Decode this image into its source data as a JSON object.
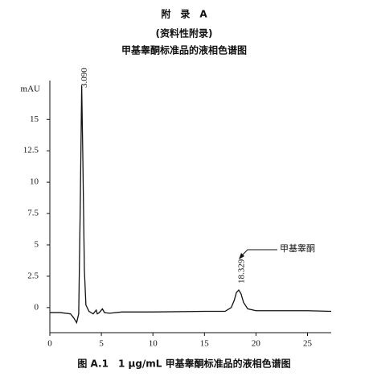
{
  "header": {
    "appendix": "附　录　A",
    "note": "(资料性附录)",
    "title": "甲基睾酮标准品的液相色谱图"
  },
  "chart_data": {
    "type": "line",
    "ylabel": "mAU",
    "caption": "图 A.1　1 μg/mL 甲基睾酮标准品的液相色谱图",
    "x": [
      0,
      1,
      2,
      2.3,
      2.6,
      2.8,
      2.95,
      3.09,
      3.2,
      3.35,
      3.5,
      3.8,
      4.2,
      4.5,
      4.6,
      4.8,
      5.1,
      5.3,
      5.8,
      7,
      10,
      15,
      17,
      17.6,
      17.9,
      18.1,
      18.329,
      18.55,
      18.8,
      19.2,
      20,
      25,
      27.3
    ],
    "series": [
      {
        "name": "chromatogram",
        "color": "#111111",
        "values": [
          -0.4,
          -0.4,
          -0.5,
          -0.8,
          -1.2,
          -0.5,
          8,
          17.7,
          12,
          3,
          0.2,
          -0.3,
          -0.5,
          -0.2,
          -0.5,
          -0.4,
          -0.1,
          -0.4,
          -0.45,
          -0.35,
          -0.35,
          -0.3,
          -0.3,
          0,
          0.6,
          1.2,
          1.4,
          1.1,
          0.4,
          -0.1,
          -0.25,
          -0.25,
          -0.3
        ]
      }
    ],
    "peak_labels": [
      {
        "value": 3.09,
        "label": "3.090"
      },
      {
        "value": 18.329,
        "label": "18.329"
      }
    ],
    "compound_label": "甲基睾酮",
    "xlim": [
      0,
      27.3
    ],
    "ylim": [
      -2,
      18.1
    ],
    "xticks": [
      0,
      5,
      10,
      15,
      20,
      25
    ],
    "yticks": [
      0,
      2.5,
      5,
      7.5,
      10,
      12.5,
      15
    ]
  }
}
